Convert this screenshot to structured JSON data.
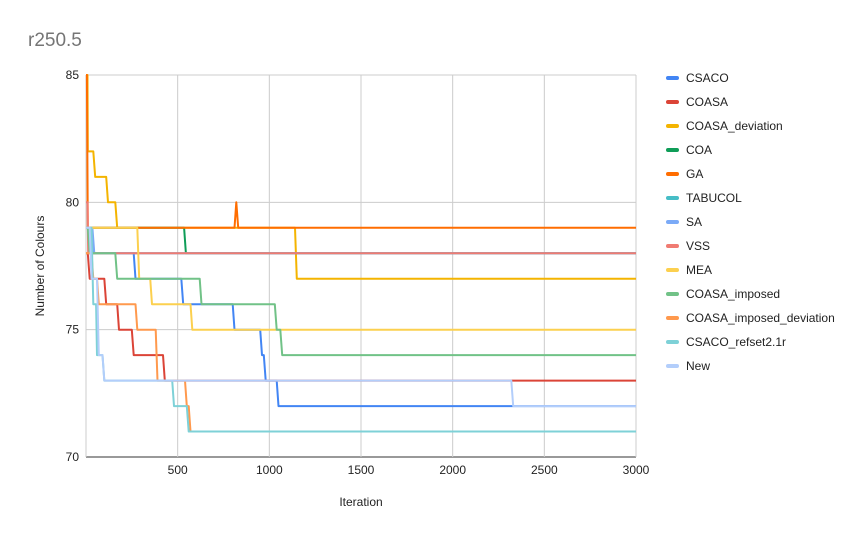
{
  "chart_data": {
    "type": "line",
    "title": "r250.5",
    "xlabel": "Iteration",
    "ylabel": "Number of Colours",
    "xlim": [
      0,
      3000
    ],
    "ylim": [
      70,
      85
    ],
    "xticks": [
      "500",
      "1000",
      "1500",
      "2000",
      "2500",
      "3000"
    ],
    "yticks": [
      "70",
      "75",
      "80",
      "85"
    ],
    "grid": true,
    "legend_position": "right",
    "series": [
      {
        "name": "CSACO",
        "color": "#4285f4",
        "x": [
          0,
          30,
          40,
          260,
          270,
          520,
          530,
          800,
          810,
          950,
          960,
          970,
          980,
          1040,
          1050,
          3000
        ],
        "y": [
          79,
          79,
          78,
          78,
          77,
          77,
          76,
          76,
          75,
          75,
          74,
          74,
          73,
          73,
          72,
          72
        ]
      },
      {
        "name": "COASA",
        "color": "#db4437",
        "x": [
          0,
          10,
          20,
          40,
          50,
          100,
          110,
          170,
          180,
          250,
          260,
          420,
          430,
          2320,
          2330,
          3000
        ],
        "y": [
          78,
          78,
          77,
          77,
          77,
          77,
          76,
          76,
          75,
          75,
          74,
          74,
          73,
          73,
          73,
          73
        ]
      },
      {
        "name": "COASA_deviation",
        "color": "#f4b400",
        "x": [
          0,
          8,
          10,
          40,
          50,
          110,
          120,
          160,
          170,
          1140,
          1150,
          3000
        ],
        "y": [
          85,
          85,
          82,
          82,
          81,
          81,
          80,
          80,
          79,
          79,
          77,
          77
        ]
      },
      {
        "name": "COA",
        "color": "#0f9d58",
        "x": [
          0,
          535,
          545,
          3000
        ],
        "y": [
          79,
          79,
          78,
          78
        ]
      },
      {
        "name": "GA",
        "color": "#ff6d00",
        "x": [
          0,
          5,
          10,
          810,
          820,
          830,
          3000
        ],
        "y": [
          85,
          85,
          79,
          79,
          80,
          79,
          79
        ]
      },
      {
        "name": "TABUCOL",
        "color": "#46bdc6",
        "x": [
          0,
          20,
          30,
          50,
          60,
          3000
        ],
        "y": [
          79,
          79,
          78,
          78,
          78,
          78
        ]
      },
      {
        "name": "SA",
        "color": "#7baaf7",
        "x": [
          0,
          35,
          45,
          2320,
          2330,
          3000
        ],
        "y": [
          79,
          79,
          78,
          78,
          78,
          78
        ]
      },
      {
        "name": "VSS",
        "color": "#f07b72",
        "x": [
          0,
          8,
          12,
          3000
        ],
        "y": [
          80,
          80,
          78,
          78
        ]
      },
      {
        "name": "MEA",
        "color": "#fcd04f",
        "x": [
          0,
          280,
          290,
          350,
          360,
          570,
          580,
          3000
        ],
        "y": [
          79,
          79,
          77,
          77,
          76,
          76,
          75,
          75
        ]
      },
      {
        "name": "COASA_imposed",
        "color": "#71c287",
        "x": [
          0,
          10,
          20,
          160,
          170,
          620,
          630,
          1030,
          1040,
          1060,
          1070,
          3000
        ],
        "y": [
          79,
          79,
          78,
          78,
          77,
          77,
          76,
          76,
          75,
          75,
          74,
          74
        ]
      },
      {
        "name": "COASA_imposed_deviation",
        "color": "#ff994d",
        "x": [
          0,
          30,
          40,
          60,
          70,
          120,
          130,
          270,
          280,
          380,
          390,
          540,
          550,
          560,
          570,
          3000
        ],
        "y": [
          78,
          78,
          77,
          77,
          76,
          76,
          76,
          76,
          75,
          75,
          73,
          73,
          72,
          72,
          71,
          71
        ]
      },
      {
        "name": "CSACO_refset2.1r",
        "color": "#7ed1d7",
        "x": [
          0,
          30,
          40,
          55,
          60,
          90,
          100,
          470,
          480,
          550,
          560,
          3000
        ],
        "y": [
          79,
          79,
          76,
          76,
          74,
          74,
          73,
          73,
          72,
          72,
          71,
          71
        ]
      },
      {
        "name": "New",
        "color": "#b3cefb",
        "x": [
          0,
          20,
          30,
          60,
          70,
          90,
          100,
          2320,
          2330,
          3000
        ],
        "y": [
          79,
          79,
          77,
          77,
          74,
          74,
          73,
          73,
          72,
          72
        ]
      }
    ]
  }
}
